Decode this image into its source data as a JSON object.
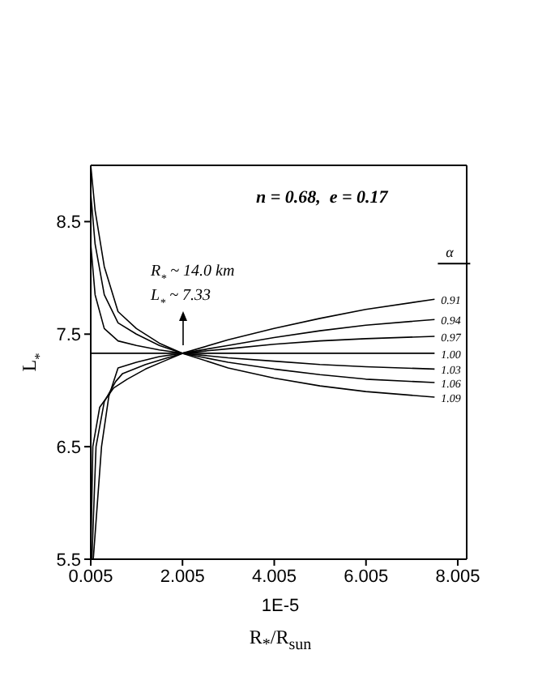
{
  "chart_data": {
    "type": "line",
    "title": "n = 0.68,  e = 0.17",
    "xlabel": "R$_{*}$/R$_{sun}$",
    "ylabel": "L$_{*}$",
    "legend_title": "α",
    "annotations": [
      "R$_{*}$ ~ 14.0 km",
      "L$_{*}$ ~ 7.33",
      "1E-5"
    ],
    "xlim": [
      0.005,
      8.2
    ],
    "xticks": [
      0.005,
      2.005,
      4.005,
      6.005,
      8.005
    ],
    "ylim": [
      5.5,
      9.0
    ],
    "yticks": [
      5.5,
      6.5,
      7.5,
      8.5
    ],
    "marker": "none",
    "line_style": "solid",
    "series": [
      {
        "name": "0.91",
        "color": "#000000",
        "x": [
          0.005,
          0.05,
          0.2,
          0.5,
          0.8,
          1.2,
          1.6,
          2.005,
          3,
          4,
          5,
          6,
          7.5
        ],
        "values": [
          5.5,
          6.5,
          6.85,
          7.02,
          7.1,
          7.19,
          7.26,
          7.33,
          7.45,
          7.55,
          7.64,
          7.72,
          7.81
        ]
      },
      {
        "name": "0.94",
        "color": "#000000",
        "x": [
          0.03,
          0.12,
          0.3,
          0.55,
          0.7,
          1.2,
          1.6,
          2.005,
          3,
          4,
          5,
          6,
          7.5
        ],
        "values": [
          5.5,
          6.5,
          6.9,
          7.08,
          7.15,
          7.23,
          7.28,
          7.33,
          7.4,
          7.47,
          7.53,
          7.58,
          7.63
        ]
      },
      {
        "name": "0.97",
        "color": "#000000",
        "x": [
          0.06,
          0.24,
          0.4,
          0.6,
          1.0,
          1.5,
          2.005,
          3,
          4,
          5,
          6,
          7.5
        ],
        "values": [
          5.5,
          6.5,
          6.95,
          7.2,
          7.25,
          7.3,
          7.33,
          7.37,
          7.41,
          7.44,
          7.46,
          7.48
        ]
      },
      {
        "name": "1.00",
        "color": "#000000",
        "x": [
          0.005,
          2.005,
          7.5
        ],
        "values": [
          7.33,
          7.33,
          7.33
        ]
      },
      {
        "name": "1.03",
        "color": "#000000",
        "x": [
          0.005,
          0.1,
          0.3,
          0.6,
          1.0,
          1.5,
          2.005,
          3,
          4,
          5,
          6,
          7.5
        ],
        "values": [
          8.3,
          7.85,
          7.55,
          7.44,
          7.4,
          7.36,
          7.33,
          7.29,
          7.26,
          7.23,
          7.21,
          7.19
        ]
      },
      {
        "name": "1.06",
        "color": "#000000",
        "x": [
          0.005,
          0.1,
          0.3,
          0.6,
          1.0,
          1.5,
          2.005,
          3,
          4,
          5,
          6,
          7.5
        ],
        "values": [
          8.75,
          8.3,
          7.85,
          7.6,
          7.5,
          7.4,
          7.33,
          7.25,
          7.19,
          7.14,
          7.1,
          7.07
        ]
      },
      {
        "name": "1.09",
        "color": "#000000",
        "x": [
          0.005,
          0.1,
          0.3,
          0.6,
          1.0,
          1.5,
          2.005,
          3,
          4,
          5,
          6,
          7.5
        ],
        "values": [
          9.0,
          8.6,
          8.1,
          7.7,
          7.55,
          7.42,
          7.33,
          7.2,
          7.11,
          7.04,
          6.99,
          6.94
        ]
      }
    ]
  }
}
